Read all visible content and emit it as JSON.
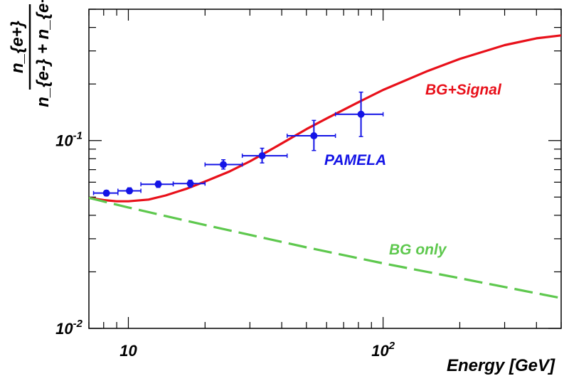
{
  "chart_data": {
    "type": "line",
    "xscale": "log",
    "yscale": "log",
    "xlim": [
      7,
      500
    ],
    "ylim": [
      0.01,
      0.5
    ],
    "xlabel": "Energy [GeV]",
    "ylabel": {
      "numerator": "n_{e+}",
      "denominator": "n_{e-} + n_{e+}"
    },
    "x_ticks": [
      {
        "value": 10,
        "base": "10",
        "exp": ""
      },
      {
        "value": 100,
        "base": "10",
        "exp": "2"
      }
    ],
    "y_ticks": [
      {
        "value": 0.01,
        "base": "10",
        "exp": "-2"
      },
      {
        "value": 0.1,
        "base": "10",
        "exp": "-1"
      }
    ],
    "grid": false,
    "colors": {
      "signal": "#e8101a",
      "background": "#5ec84e",
      "pamela": "#1414e6",
      "axis": "#000000"
    },
    "series": [
      {
        "name": "BG+Signal",
        "style": "solid",
        "color": "#e8101a",
        "x": [
          7,
          8,
          9,
          10,
          12,
          14,
          17,
          20,
          25,
          30,
          35,
          40,
          50,
          60,
          80,
          100,
          150,
          200,
          300,
          400,
          500
        ],
        "y": [
          0.0495,
          0.0482,
          0.0475,
          0.0475,
          0.0485,
          0.051,
          0.0555,
          0.0605,
          0.0685,
          0.0775,
          0.087,
          0.0965,
          0.115,
          0.131,
          0.16,
          0.186,
          0.235,
          0.272,
          0.322,
          0.35,
          0.363
        ]
      },
      {
        "name": "BG only",
        "style": "dashed",
        "color": "#5ec84e",
        "x": [
          7,
          10,
          20,
          50,
          100,
          200,
          500
        ],
        "y": [
          0.0495,
          0.044,
          0.0355,
          0.027,
          0.0222,
          0.0185,
          0.0145
        ]
      },
      {
        "name": "PAMELA",
        "style": "points",
        "color": "#1414e6",
        "points": [
          {
            "x": 8.2,
            "xlo": 7.3,
            "xhi": 9.1,
            "y": 0.0525,
            "ylo": 0.0508,
            "yhi": 0.0542
          },
          {
            "x": 10.1,
            "xlo": 9.1,
            "xhi": 11.2,
            "y": 0.054,
            "ylo": 0.0522,
            "yhi": 0.056
          },
          {
            "x": 13.1,
            "xlo": 11.2,
            "xhi": 15.0,
            "y": 0.0585,
            "ylo": 0.0563,
            "yhi": 0.0608
          },
          {
            "x": 17.5,
            "xlo": 15.0,
            "xhi": 20.0,
            "y": 0.059,
            "ylo": 0.0565,
            "yhi": 0.0615
          },
          {
            "x": 23.6,
            "xlo": 20.0,
            "xhi": 28.0,
            "y": 0.0745,
            "ylo": 0.0705,
            "yhi": 0.079
          },
          {
            "x": 33.5,
            "xlo": 28.0,
            "xhi": 42.0,
            "y": 0.083,
            "ylo": 0.076,
            "yhi": 0.091
          },
          {
            "x": 53.5,
            "xlo": 42.0,
            "xhi": 65.0,
            "y": 0.106,
            "ylo": 0.0885,
            "yhi": 0.128
          },
          {
            "x": 81.9,
            "xlo": 65.0,
            "xhi": 100.0,
            "y": 0.138,
            "ylo": 0.105,
            "yhi": 0.181
          }
        ]
      }
    ],
    "annotations": [
      "BG+Signal",
      "PAMELA",
      "BG only"
    ]
  }
}
